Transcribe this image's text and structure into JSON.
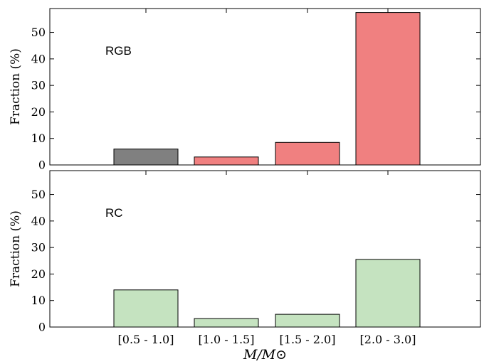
{
  "chart_data": [
    {
      "type": "bar",
      "panel_label": "RGB",
      "categories": [
        "[0.5 - 1.0]",
        "[1.0 - 1.5]",
        "[1.5 - 2.0]",
        "[2.0 - 3.0]"
      ],
      "values": [
        6,
        3,
        8.5,
        57.5
      ],
      "bar_colors": [
        "#808080",
        "#f08080",
        "#f08080",
        "#f08080"
      ],
      "ylabel": "Fraction (%)",
      "ylim": [
        0,
        59
      ],
      "yticks": [
        0,
        10,
        20,
        30,
        40,
        50
      ],
      "xtick_labels_shown": false,
      "grid": false
    },
    {
      "type": "bar",
      "panel_label": "RC",
      "categories": [
        "[0.5 - 1.0]",
        "[1.0 - 1.5]",
        "[1.5 - 2.0]",
        "[2.0 - 3.0]"
      ],
      "values": [
        14,
        3.2,
        4.8,
        25.5
      ],
      "bar_colors": [
        "#c5e3c0",
        "#c5e3c0",
        "#c5e3c0",
        "#c5e3c0"
      ],
      "ylabel": "Fraction (%)",
      "ylim": [
        0,
        59
      ],
      "yticks": [
        0,
        10,
        20,
        30,
        40,
        50
      ],
      "xtick_labels_shown": true,
      "xlabel": "M/M⊙",
      "grid": false
    }
  ]
}
